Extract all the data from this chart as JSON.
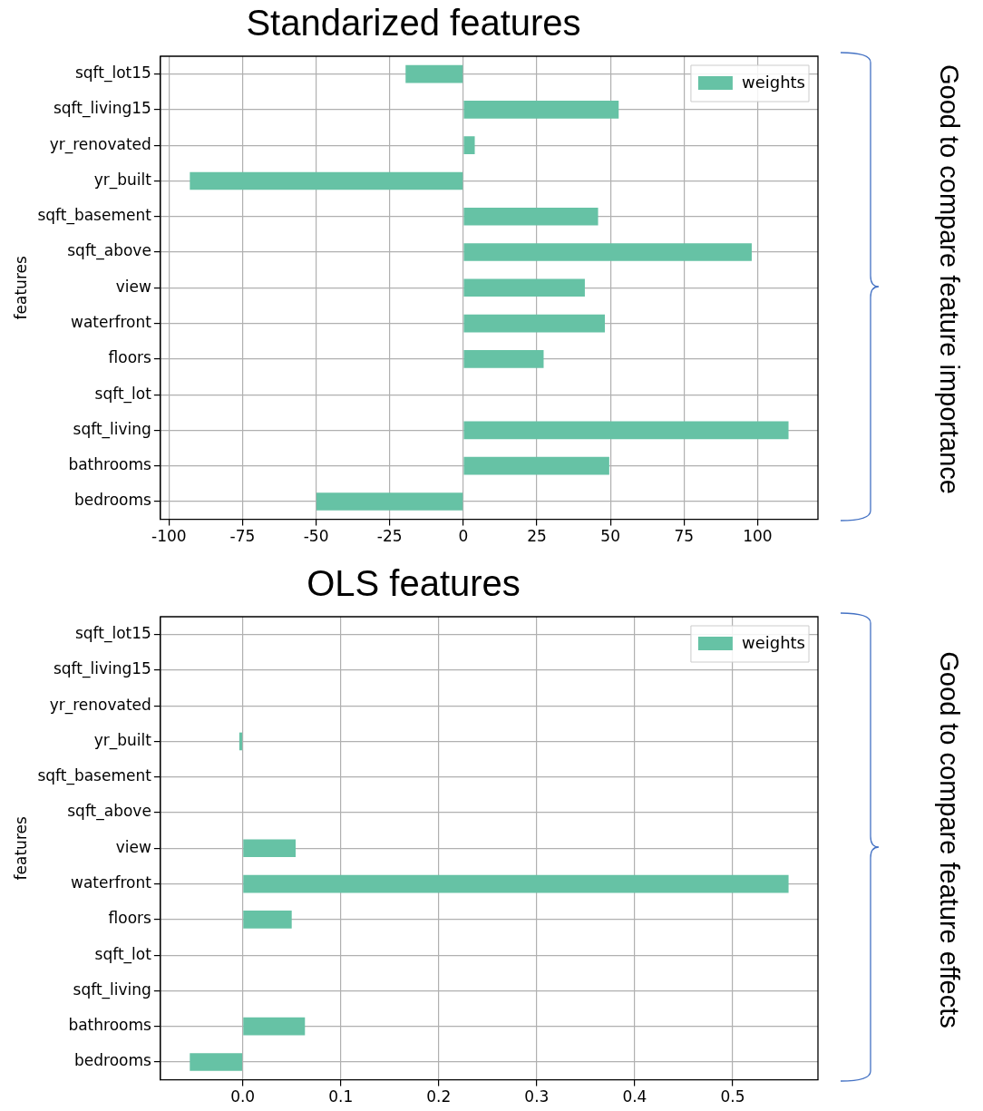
{
  "chart_data": [
    {
      "type": "bar",
      "orientation": "horizontal",
      "title": "Standarized features",
      "ylabel": "features",
      "categories": [
        "sqft_lot15",
        "sqft_living15",
        "yr_renovated",
        "yr_built",
        "sqft_basement",
        "sqft_above",
        "view",
        "waterfront",
        "floors",
        "sqft_lot",
        "sqft_living",
        "bathrooms",
        "bedrooms"
      ],
      "series": [
        {
          "name": "weights",
          "color": "#66c2a5",
          "values": [
            -19.6,
            52.8,
            3.9,
            -92.9,
            45.8,
            98,
            41.3,
            48.1,
            27.3,
            0,
            110.5,
            49.6,
            -49.9
          ]
        }
      ],
      "xlim": [
        -102.9,
        120.5
      ],
      "xticks": [
        -100,
        -75,
        -50,
        -25,
        0,
        25,
        50,
        75,
        100
      ],
      "grid": true,
      "legend": "top right",
      "annotations": [
        "Good to compare feature importance"
      ]
    },
    {
      "type": "bar",
      "orientation": "horizontal",
      "title": "OLS features",
      "ylabel": "features",
      "categories": [
        "sqft_lot15",
        "sqft_living15",
        "yr_renovated",
        "yr_built",
        "sqft_basement",
        "sqft_above",
        "view",
        "waterfront",
        "floors",
        "sqft_lot",
        "sqft_living",
        "bathrooms",
        "bedrooms"
      ],
      "series": [
        {
          "name": "weights",
          "color": "#66c2a5",
          "values": [
            0,
            0,
            0,
            -0.0035,
            0,
            0,
            0.054,
            0.557,
            0.05,
            0,
            0,
            0.0635,
            -0.054
          ]
        }
      ],
      "xlim": [
        -0.084,
        0.587
      ],
      "xticks": [
        {
          "value": 0,
          "label": "0.0"
        },
        0.1,
        0.2,
        0.3,
        0.4,
        0.5
      ],
      "grid": true,
      "legend": "top right",
      "annotations": [
        "Good to compare feature effects"
      ]
    }
  ]
}
